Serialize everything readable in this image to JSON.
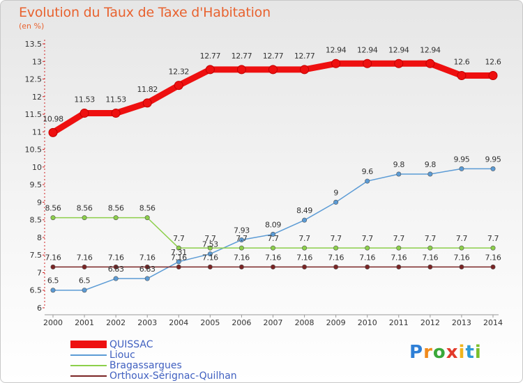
{
  "title": "Evolution du Taux de Taxe d'Habitation",
  "subtitle": "(en %)",
  "logo": {
    "text": "Proxiti",
    "letters": [
      "P",
      "r",
      "o",
      "x",
      "i",
      "t",
      "i"
    ],
    "colors": [
      "#2e7fd6",
      "#f08a1c",
      "#3aa83a",
      "#e23a2a",
      "#f0b41c",
      "#2e9ad6",
      "#7abf2a"
    ]
  },
  "chart_data": {
    "type": "line",
    "title": "Evolution du Taux de Taxe d'Habitation",
    "ylabel": "(en %)",
    "xlabel": "",
    "x": [
      "2000",
      "2001",
      "2002",
      "2003",
      "2004",
      "2005",
      "2006",
      "2007",
      "2008",
      "2009",
      "2010",
      "2011",
      "2012",
      "2013",
      "2014"
    ],
    "ylim": [
      6,
      13.5
    ],
    "yticks": [
      "6",
      "6.5",
      "7",
      "7.5",
      "8",
      "8.5",
      "9",
      "9.5",
      "10",
      "10.5",
      "11",
      "11.5",
      "12",
      "12.5",
      "13",
      "13.5"
    ],
    "grid": false,
    "legend_position": "bottom-left",
    "series": [
      {
        "name": "QUISSAC",
        "color": "#ee1010",
        "style": "thick",
        "values": [
          10.98,
          11.53,
          11.53,
          11.82,
          12.32,
          12.77,
          12.77,
          12.77,
          12.77,
          12.94,
          12.94,
          12.94,
          12.94,
          12.6,
          12.6
        ],
        "labels": [
          "10.98",
          "11.53",
          "11.53",
          "11.82",
          "12.32",
          "12.77",
          "12.77",
          "12.77",
          "12.77",
          "12.94",
          "12.94",
          "12.94",
          "12.94",
          "12.6",
          "12.6"
        ]
      },
      {
        "name": "Liouc",
        "color": "#5b9bd5",
        "style": "thin",
        "values": [
          6.5,
          6.5,
          6.83,
          6.83,
          7.31,
          7.53,
          7.93,
          8.09,
          8.49,
          9,
          9.6,
          9.8,
          9.8,
          9.95,
          9.95
        ],
        "labels": [
          "6.5",
          "6.5",
          "6.83",
          "6.83",
          "7.31",
          "7.53",
          "7.93",
          "8.09",
          "8.49",
          "9",
          "9.6",
          "9.8",
          "9.8",
          "9.95",
          "9.95"
        ]
      },
      {
        "name": "Bragassargues",
        "color": "#8ccf4a",
        "style": "thin",
        "values": [
          8.56,
          8.56,
          8.56,
          8.56,
          7.7,
          7.7,
          7.7,
          7.7,
          7.7,
          7.7,
          7.7,
          7.7,
          7.7,
          7.7,
          7.7
        ],
        "labels": [
          "8.56",
          "8.56",
          "8.56",
          "8.56",
          "7.7",
          "7.7",
          "7.7",
          "7.7",
          "7.7",
          "7.7",
          "7.7",
          "7.7",
          "7.7",
          "7.7",
          "7.7"
        ]
      },
      {
        "name": "Orthoux-Sérignac-Quilhan",
        "color": "#7a2424",
        "style": "thin",
        "values": [
          7.16,
          7.16,
          7.16,
          7.16,
          7.16,
          7.16,
          7.16,
          7.16,
          7.16,
          7.16,
          7.16,
          7.16,
          7.16,
          7.16,
          7.16
        ],
        "labels": [
          "7.16",
          "7.16",
          "7.16",
          "7.16",
          "7.16",
          "7.16",
          "7.16",
          "7.16",
          "7.16",
          "7.16",
          "7.16",
          "7.16",
          "7.16",
          "7.16",
          "7.16"
        ]
      }
    ]
  }
}
